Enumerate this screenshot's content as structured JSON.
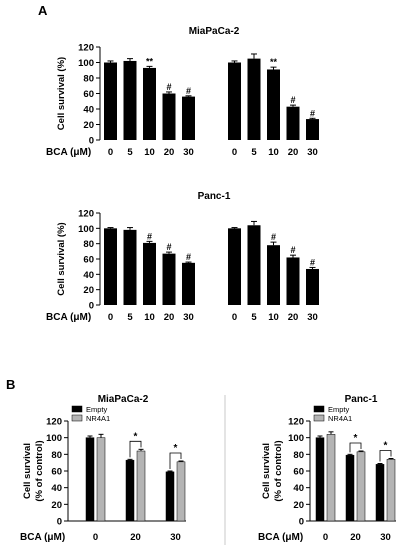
{
  "panels": {
    "a_label": "A",
    "b_label": "B"
  },
  "colors": {
    "bar_black": "#000000",
    "bar_grey": "#b4b4b4",
    "axis": "#000000",
    "separator": "#c8c8c8"
  },
  "chart_data": [
    {
      "id": "A1",
      "type": "bar",
      "title": "MiaPaCa-2",
      "ylabel": "Cell survival (%)",
      "xlabel": "BCA (μM)",
      "ylim": [
        0,
        120
      ],
      "yticks": [
        "0",
        "20",
        "40",
        "60",
        "80",
        "100",
        "120"
      ],
      "groups": [
        {
          "categories": [
            "0",
            "5",
            "10",
            "20",
            "30"
          ],
          "values": [
            100,
            102,
            93,
            60,
            56
          ],
          "errors": [
            2,
            3,
            2,
            2,
            1
          ],
          "annotations": [
            "",
            "",
            "**",
            "#",
            "#"
          ]
        },
        {
          "categories": [
            "0",
            "5",
            "10",
            "20",
            "30"
          ],
          "values": [
            100,
            105,
            91,
            43,
            27
          ],
          "errors": [
            2,
            6,
            3,
            2,
            1
          ],
          "annotations": [
            "",
            "",
            "**",
            "#",
            "#"
          ]
        }
      ]
    },
    {
      "id": "A2",
      "type": "bar",
      "title": "Panc-1",
      "ylabel": "Cell survival (%)",
      "xlabel": "BCA (μM)",
      "ylim": [
        0,
        120
      ],
      "yticks": [
        "0",
        "20",
        "40",
        "60",
        "80",
        "100",
        "120"
      ],
      "groups": [
        {
          "categories": [
            "0",
            "5",
            "10",
            "20",
            "30"
          ],
          "values": [
            100,
            98,
            81,
            67,
            55
          ],
          "errors": [
            1,
            3,
            2,
            2,
            1
          ],
          "annotations": [
            "",
            "",
            "#",
            "#",
            "#"
          ]
        },
        {
          "categories": [
            "0",
            "5",
            "10",
            "20",
            "30"
          ],
          "values": [
            100,
            104,
            78,
            62,
            47
          ],
          "errors": [
            1,
            5,
            4,
            3,
            2
          ],
          "annotations": [
            "",
            "",
            "#",
            "#",
            "#"
          ]
        }
      ]
    },
    {
      "id": "B1",
      "type": "bar",
      "title": "MiaPaCa-2",
      "ylabel_line1": "Cell survival",
      "ylabel_line2": "(% of control)",
      "xlabel": "BCA (μM)",
      "ylim": [
        0,
        120
      ],
      "yticks": [
        "0",
        "20",
        "40",
        "60",
        "80",
        "100",
        "120"
      ],
      "categories": [
        "0",
        "20",
        "30"
      ],
      "series": [
        {
          "name": "Empty",
          "values": [
            100,
            73,
            59
          ],
          "errors": [
            2,
            1,
            1
          ]
        },
        {
          "name": "NR4A1",
          "values": [
            100,
            84,
            71
          ],
          "errors": [
            4,
            2,
            1
          ]
        }
      ],
      "significance": [
        "",
        "*",
        "*"
      ],
      "legend": "top-left"
    },
    {
      "id": "B2",
      "type": "bar",
      "title": "Panc-1",
      "ylabel_line1": "Cell survival",
      "ylabel_line2": "(% of control)",
      "xlabel": "BCA (μM)",
      "ylim": [
        0,
        120
      ],
      "yticks": [
        "0",
        "20",
        "40",
        "60",
        "80",
        "100",
        "120"
      ],
      "categories": [
        "0",
        "20",
        "30"
      ],
      "series": [
        {
          "name": "Empty",
          "values": [
            100,
            79,
            68
          ],
          "errors": [
            2,
            1,
            1
          ]
        },
        {
          "name": "NR4A1",
          "values": [
            104,
            83,
            74
          ],
          "errors": [
            3,
            1,
            1
          ]
        }
      ],
      "significance": [
        "",
        "*",
        "*"
      ],
      "legend": "top-left"
    }
  ]
}
